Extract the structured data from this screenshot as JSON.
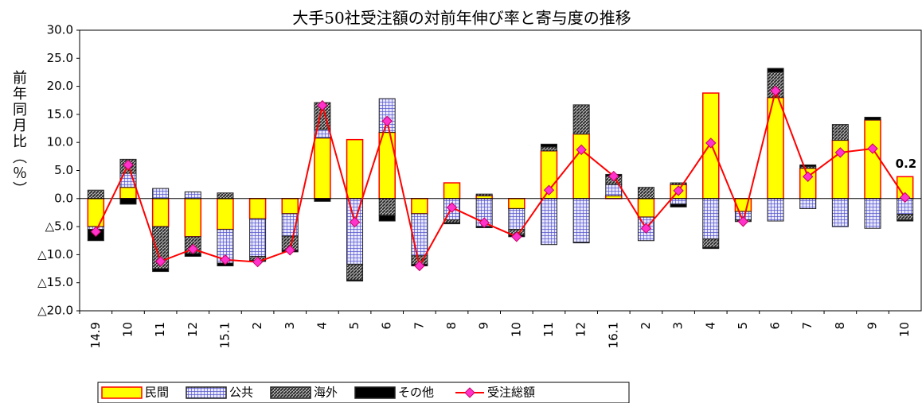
{
  "chart_data": {
    "type": "bar",
    "title": "大手50社受注額の対前年伸び率と寄与度の推移",
    "y_label": "前年同月比（％）",
    "categories": [
      "14.9",
      "10",
      "11",
      "12",
      "15.1",
      "2",
      "3",
      "4",
      "5",
      "6",
      "7",
      "8",
      "9",
      "10",
      "11",
      "12",
      "16.1",
      "2",
      "3",
      "4",
      "5",
      "6",
      "7",
      "8",
      "9",
      "10"
    ],
    "series": [
      {
        "name": "民間",
        "color": "#ffff00",
        "values": [
          -5.0,
          2.0,
          -5.0,
          -6.8,
          -5.5,
          -3.6,
          -2.7,
          10.8,
          10.5,
          11.8,
          -2.7,
          2.8,
          0.5,
          -1.8,
          8.5,
          11.5,
          0.5,
          -3.3,
          2.5,
          18.8,
          -2.3,
          18.0,
          5.4,
          10.4,
          14.0,
          3.9
        ]
      },
      {
        "name": "公共",
        "color": "#5555cc",
        "values": [
          -0.5,
          2.5,
          1.8,
          1.2,
          -6.0,
          -6.7,
          -4.0,
          1.5,
          -11.7,
          6.0,
          -7.5,
          -3.8,
          -5.0,
          -3.7,
          -8.2,
          -7.8,
          2.0,
          -4.2,
          -1.0,
          -7.2,
          -1.5,
          -4.0,
          -1.8,
          -5.0,
          -5.3,
          -2.8
        ]
      },
      {
        "name": "海外",
        "color": "#333333",
        "values": [
          1.5,
          2.5,
          -7.5,
          -3.0,
          1.0,
          -0.7,
          -2.5,
          4.8,
          -2.8,
          -3.0,
          -1.5,
          -0.5,
          0.3,
          -1.0,
          0.7,
          5.2,
          1.5,
          2.0,
          0.3,
          -1.5,
          -0.3,
          4.5,
          0.3,
          2.8,
          0.0,
          -1.0
        ]
      },
      {
        "name": "その他",
        "color": "#000000",
        "values": [
          -2.0,
          -1.0,
          -0.5,
          -0.5,
          -0.5,
          -0.2,
          -0.3,
          -0.5,
          -0.2,
          -1.0,
          -0.3,
          -0.2,
          -0.2,
          -0.3,
          0.5,
          -0.1,
          0.3,
          0.0,
          -0.5,
          -0.2,
          0.0,
          0.7,
          0.3,
          0.0,
          0.5,
          -0.2
        ]
      },
      {
        "name": "受注総額",
        "type": "line",
        "color": "#ff0000",
        "marker_color": "#ff33cc",
        "values": [
          -5.9,
          6.0,
          -11.2,
          -9.0,
          -10.9,
          -11.3,
          -9.2,
          16.6,
          -4.2,
          13.8,
          -12.0,
          -1.6,
          -4.3,
          -6.8,
          1.5,
          8.7,
          4.0,
          -5.3,
          1.4,
          9.9,
          -4.1,
          19.2,
          3.9,
          8.2,
          8.9,
          0.2
        ]
      }
    ],
    "ylim": [
      -20,
      30
    ],
    "yticks": [
      {
        "value": -20,
        "label": "△20.0"
      },
      {
        "value": -15,
        "label": "△15.0"
      },
      {
        "value": -10,
        "label": "△10.0"
      },
      {
        "value": -5,
        "label": "△5.0"
      },
      {
        "value": 0,
        "label": "0.0"
      },
      {
        "value": 5,
        "label": "5.0"
      },
      {
        "value": 10,
        "label": "10.0"
      },
      {
        "value": 15,
        "label": "15.0"
      },
      {
        "value": 20,
        "label": "20.0"
      },
      {
        "value": 25,
        "label": "25.0"
      },
      {
        "value": 30,
        "label": "30.0"
      }
    ],
    "grid": false
  }
}
